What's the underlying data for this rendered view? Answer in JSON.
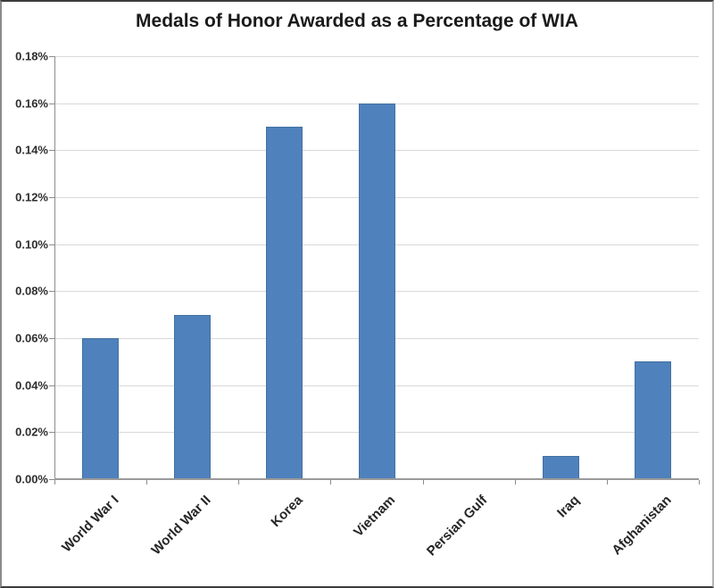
{
  "chart_data": {
    "type": "bar",
    "title": "Medals of Honor Awarded as a Percentage of WIA",
    "categories": [
      "World War I",
      "World War II",
      "Korea",
      "Vietnam",
      "Persian Gulf",
      "Iraq",
      "Afghanistan"
    ],
    "values": [
      0.06,
      0.07,
      0.15,
      0.16,
      0.0,
      0.01,
      0.05
    ],
    "unit": "%",
    "xlabel": "",
    "ylabel": "",
    "ylim": [
      0,
      0.18
    ],
    "ytick_step": 0.02,
    "ytick_labels": [
      "0.00%",
      "0.02%",
      "0.04%",
      "0.06%",
      "0.08%",
      "0.10%",
      "0.12%",
      "0.14%",
      "0.16%",
      "0.18%"
    ],
    "grid": "horizontal",
    "legend": "none",
    "colors": {
      "bar_fill": "#4f81bd",
      "bar_border": "#44719f",
      "gridline": "#d9d9d9",
      "axis_line": "#8c8c8c",
      "title_text": "#1a1a1a",
      "label_text": "#262626"
    }
  }
}
